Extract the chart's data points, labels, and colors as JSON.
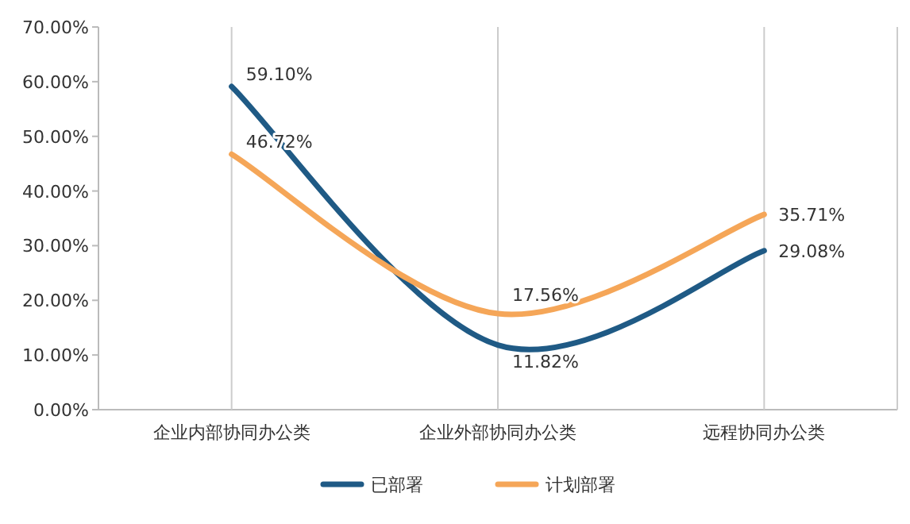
{
  "chart_data": {
    "type": "line",
    "categories": [
      "企业内部协同办公类",
      "企业外部协同办公类",
      "远程协同办公类"
    ],
    "series": [
      {
        "name": "已部署",
        "color": "#1f5a85",
        "values": [
          59.1,
          11.82,
          29.08
        ],
        "value_labels": [
          "59.10%",
          "11.82%",
          "29.08%"
        ]
      },
      {
        "name": "计划部署",
        "color": "#f5a658",
        "values": [
          46.72,
          17.56,
          35.71
        ],
        "value_labels": [
          "46.72%",
          "17.56%",
          "35.71%"
        ]
      }
    ],
    "ylim": [
      0,
      70
    ],
    "yticks": [
      {
        "value": 0,
        "label": "0.00%"
      },
      {
        "value": 10,
        "label": "10.00%"
      },
      {
        "value": 20,
        "label": "20.00%"
      },
      {
        "value": 30,
        "label": "30.00%"
      },
      {
        "value": 40,
        "label": "40.00%"
      },
      {
        "value": 50,
        "label": "50.00%"
      },
      {
        "value": 60,
        "label": "60.00%"
      },
      {
        "value": 70,
        "label": "70.00%"
      }
    ],
    "grid": "x",
    "legend": "bottom",
    "marker": "none",
    "line_style": "solid"
  }
}
